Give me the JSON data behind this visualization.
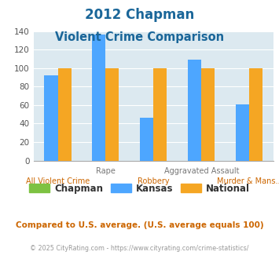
{
  "title_line1": "2012 Chapman",
  "title_line2": "Violent Crime Comparison",
  "categories": [
    "All Violent Crime",
    "Rape",
    "Robbery",
    "Aggravated Assault",
    "Murder & Mans..."
  ],
  "x_top_labels": [
    "",
    "Rape",
    "",
    "Aggravated Assault",
    ""
  ],
  "x_bottom_labels": [
    "All Violent Crime",
    "",
    "Robbery",
    "",
    "Murder & Mans..."
  ],
  "kansas_values": [
    92,
    136,
    46,
    109,
    61
  ],
  "national_values": [
    100,
    100,
    100,
    100,
    100
  ],
  "chapman_color": "#7dc242",
  "kansas_color": "#4da6ff",
  "national_color": "#f5a623",
  "bg_color": "#dce9f0",
  "ylim": [
    0,
    140
  ],
  "yticks": [
    0,
    20,
    40,
    60,
    80,
    100,
    120,
    140
  ],
  "footnote": "Compared to U.S. average. (U.S. average equals 100)",
  "copyright": "© 2025 CityRating.com - https://www.cityrating.com/crime-statistics/",
  "legend_labels": [
    "Chapman",
    "Kansas",
    "National"
  ],
  "title_color": "#1a6699",
  "footnote_color": "#cc6600",
  "copyright_color": "#999999",
  "x_label_color_top": "#777777",
  "x_label_color_bottom": "#cc6600"
}
